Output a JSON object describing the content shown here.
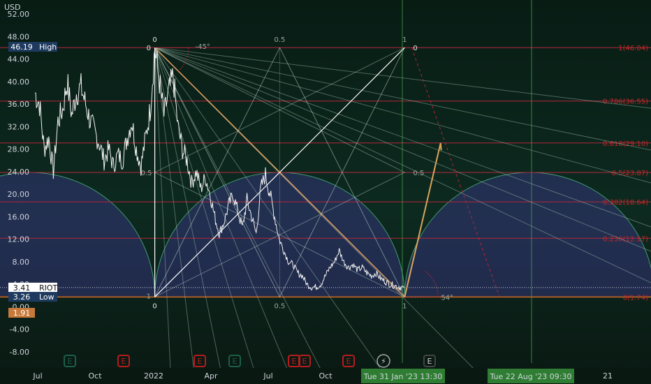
{
  "chart_data": {
    "type": "line",
    "symbol": "RIOT",
    "currency_label": "USD",
    "y_ticks": [
      52,
      48,
      44,
      40,
      36,
      32,
      28,
      24,
      20,
      16,
      12,
      8,
      4,
      0,
      -4,
      -8
    ],
    "y_tick_labels": [
      "52.00",
      "48.00",
      "44.00",
      "40.00",
      "36.00",
      "32.00",
      "28.00",
      "24.00",
      "20.00",
      "16.00",
      "12.00",
      "8.00",
      "4.00",
      "0.00",
      "-4.00",
      "-8.00"
    ],
    "ylim": [
      -10,
      54.5
    ],
    "x_labels": [
      "Jul",
      "Oct",
      "2022",
      "Apr",
      "Jul",
      "Oct",
      "21"
    ],
    "x_highlight_labels": [
      {
        "text": "Tue 31 Jan '23   13:30"
      },
      {
        "text": "Tue 22 Aug '23   09:30"
      }
    ],
    "price_badges": [
      {
        "value": "46.19",
        "label": "High",
        "color": "#1e3a5f"
      },
      {
        "value": "3.41",
        "label": "RIOT",
        "color": "#ffffff"
      },
      {
        "value": "3.26",
        "label": "Low",
        "color": "#1e3a5f"
      },
      {
        "value": "1.91",
        "label": "",
        "color": "#c77a3a"
      }
    ],
    "fib_levels": [
      {
        "text": "1(46.04)",
        "value": 46.04
      },
      {
        "text": "0.786(36.55)",
        "value": 36.55
      },
      {
        "text": "0.618(29.10)",
        "value": 29.1
      },
      {
        "text": "0.5(23.87)",
        "value": 23.87
      },
      {
        "text": "0.382(18.64)",
        "value": 18.64
      },
      {
        "text": "0.236(12.17)",
        "value": 12.17
      },
      {
        "text": "0(1.74)",
        "value": 1.74
      }
    ],
    "gann_labels": [
      "0",
      "0.5",
      "1",
      "0",
      "0.5",
      "0.5",
      "1",
      "0",
      "0.5",
      "1",
      "0"
    ],
    "angle_labels": [
      "-45°",
      "54°"
    ],
    "series": [
      {
        "values": [
          [
            0.0,
            38.0
          ],
          [
            0.015,
            36.0
          ],
          [
            0.03,
            28.0
          ],
          [
            0.045,
            30.0
          ],
          [
            0.06,
            24.0
          ],
          [
            0.075,
            33.0
          ],
          [
            0.09,
            35.0
          ],
          [
            0.105,
            40.0
          ],
          [
            0.12,
            34.0
          ],
          [
            0.135,
            38.0
          ],
          [
            0.15,
            39.0
          ],
          [
            0.165,
            36.0
          ],
          [
            0.18,
            33.0
          ],
          [
            0.195,
            31.0
          ],
          [
            0.21,
            29.0
          ],
          [
            0.225,
            26.0
          ],
          [
            0.24,
            28.0
          ],
          [
            0.255,
            25.0
          ],
          [
            0.27,
            27.0
          ],
          [
            0.285,
            26.0
          ],
          [
            0.3,
            30.0
          ],
          [
            0.315,
            33.0
          ],
          [
            0.33,
            28.0
          ],
          [
            0.345,
            25.0
          ],
          [
            0.36,
            30.0
          ],
          [
            0.375,
            35.0
          ],
          [
            0.39,
            46.0
          ],
          [
            0.405,
            40.0
          ],
          [
            0.42,
            34.0
          ],
          [
            0.435,
            38.0
          ],
          [
            0.45,
            41.0
          ],
          [
            0.465,
            32.0
          ],
          [
            0.48,
            28.0
          ],
          [
            0.495,
            26.0
          ],
          [
            0.51,
            22.0
          ],
          [
            0.525,
            24.0
          ],
          [
            0.54,
            21.0
          ],
          [
            0.555,
            23.0
          ],
          [
            0.57,
            20.0
          ],
          [
            0.585,
            16.0
          ],
          [
            0.6,
            13.0
          ],
          [
            0.615,
            15.0
          ],
          [
            0.63,
            18.0
          ],
          [
            0.645,
            20.0
          ],
          [
            0.66,
            17.0
          ],
          [
            0.675,
            14.0
          ],
          [
            0.69,
            19.0
          ],
          [
            0.705,
            16.0
          ],
          [
            0.72,
            13.0
          ],
          [
            0.735,
            21.0
          ],
          [
            0.75,
            23.5
          ],
          [
            0.765,
            20.0
          ],
          [
            0.78,
            16.0
          ],
          [
            0.795,
            12.0
          ],
          [
            0.81,
            10.0
          ],
          [
            0.825,
            8.0
          ],
          [
            0.84,
            7.5
          ],
          [
            0.855,
            6.0
          ],
          [
            0.87,
            5.5
          ],
          [
            0.885,
            4.0
          ],
          [
            0.9,
            3.5
          ],
          [
            0.915,
            3.5
          ],
          [
            0.93,
            4.0
          ],
          [
            0.945,
            5.5
          ],
          [
            0.96,
            7.0
          ],
          [
            0.975,
            8.0
          ],
          [
            0.99,
            10.0
          ],
          [
            1.005,
            8.0
          ],
          [
            1.02,
            7.0
          ],
          [
            1.035,
            7.5
          ],
          [
            1.05,
            6.5
          ],
          [
            1.065,
            7.0
          ],
          [
            1.08,
            6.0
          ],
          [
            1.095,
            5.5
          ],
          [
            1.11,
            6.0
          ],
          [
            1.125,
            5.0
          ],
          [
            1.14,
            4.5
          ],
          [
            1.155,
            4.0
          ],
          [
            1.17,
            3.8
          ],
          [
            1.185,
            3.5
          ],
          [
            1.2,
            3.41
          ]
        ]
      }
    ],
    "projection": [
      [
        1.203,
        1.74
      ],
      [
        1.32,
        29.1
      ],
      [
        1.322,
        27.8
      ]
    ],
    "grid": true
  }
}
